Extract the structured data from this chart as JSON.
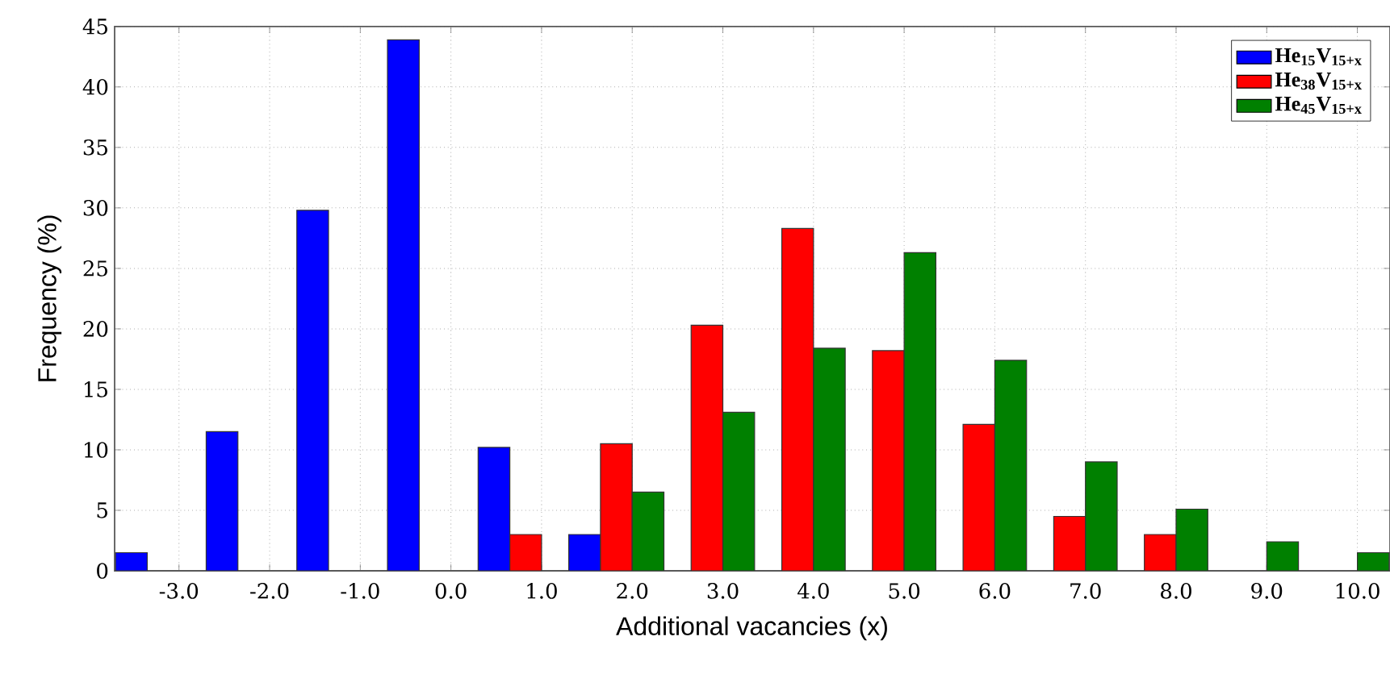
{
  "chart_data": {
    "type": "bar",
    "xlabel": "Additional vacancies (x)",
    "ylabel": "Frequency (%)",
    "series": [
      {
        "name": "He$_{15}$V$_{15+x}$",
        "color": "#0000ff",
        "x": [
          -3.525,
          -2.525,
          -1.525,
          -0.525,
          0.475,
          1.475
        ],
        "values": [
          1.5,
          11.5,
          29.8,
          43.9,
          10.2,
          3.0
        ]
      },
      {
        "name": "He$_{38}$V$_{15+x}$",
        "color": "#ff0000",
        "x": [
          0.825,
          1.825,
          2.825,
          3.825,
          4.825,
          5.825,
          6.825,
          7.825
        ],
        "values": [
          3.0,
          10.5,
          20.3,
          28.3,
          18.2,
          12.1,
          4.5,
          3.0
        ]
      },
      {
        "name": "He$_{45}$V$_{15+x}$",
        "color": "#008000",
        "x": [
          2.175,
          3.175,
          4.175,
          5.175,
          6.175,
          7.175,
          8.175,
          9.175,
          10.175
        ],
        "values": [
          6.5,
          13.1,
          18.4,
          26.3,
          17.4,
          9.0,
          5.1,
          2.4,
          1.5
        ]
      }
    ],
    "xlim": [
      -3.71,
      10.36
    ],
    "ylim": [
      0,
      45
    ],
    "xticks": [
      {
        "value": -3,
        "label": "-3.0"
      },
      {
        "value": -2,
        "label": "-2.0"
      },
      {
        "value": -1,
        "label": "-1.0"
      },
      {
        "value": 0,
        "label": "0.0"
      },
      {
        "value": 1,
        "label": "1.0"
      },
      {
        "value": 2,
        "label": "2.0"
      },
      {
        "value": 3,
        "label": "3.0"
      },
      {
        "value": 4,
        "label": "4.0"
      },
      {
        "value": 5,
        "label": "5.0"
      },
      {
        "value": 6,
        "label": "6.0"
      },
      {
        "value": 7,
        "label": "7.0"
      },
      {
        "value": 8,
        "label": "8.0"
      },
      {
        "value": 9,
        "label": "9.0"
      },
      {
        "value": 10,
        "label": "10.0"
      }
    ],
    "yticks": [
      0,
      5,
      10,
      15,
      20,
      25,
      30,
      35,
      40,
      45
    ],
    "grid": true,
    "legend": "top right"
  }
}
